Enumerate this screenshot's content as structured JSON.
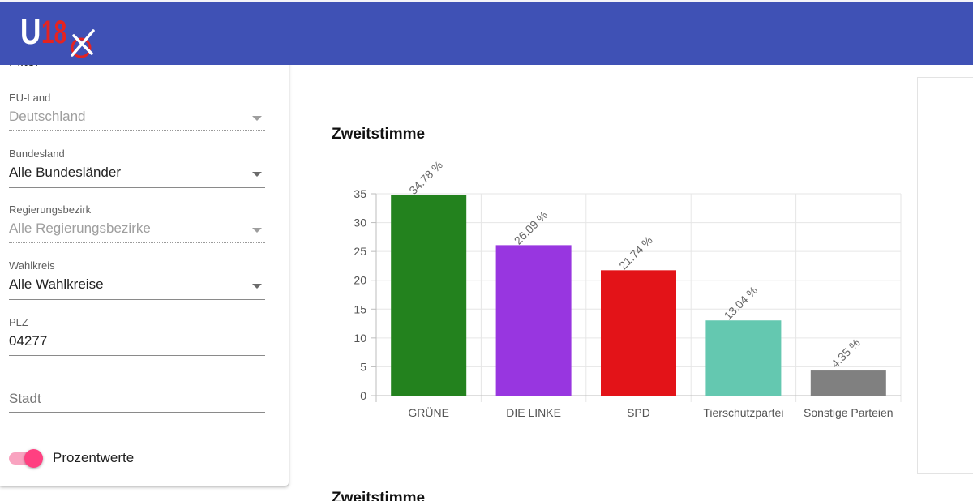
{
  "header": {
    "logo_u": "U",
    "logo_18": "18"
  },
  "filter": {
    "title": "Filter",
    "fields": {
      "eu_land": {
        "label": "EU-Land",
        "value": "Deutschland"
      },
      "bundesland": {
        "label": "Bundesland",
        "value": "Alle Bundesländer"
      },
      "regierungsbezirk": {
        "label": "Regierungsbezirk",
        "value": "Alle Regierungsbezirke"
      },
      "wahlkreis": {
        "label": "Wahlkreis",
        "value": "Alle Wahlkreise"
      },
      "plz": {
        "label": "PLZ",
        "value": "04277"
      },
      "stadt": {
        "placeholder": "Stadt",
        "value": ""
      }
    },
    "toggle": {
      "label": "Prozentwerte",
      "on": true
    }
  },
  "colors": {
    "brand_bar": "#3f51b5",
    "toggle_accent": "#ff4081"
  },
  "chart_title": "Zweitstimme",
  "chart_title_2": "Zweitstimme",
  "chart_data": {
    "type": "bar",
    "title": "Zweitstimme",
    "categories": [
      "GRÜNE",
      "DIE LINKE",
      "SPD",
      "Tierschutzpartei",
      "Sonstige Parteien"
    ],
    "values": [
      34.78,
      26.09,
      21.74,
      13.04,
      4.35
    ],
    "data_labels": [
      "34.78 %",
      "26.09 %",
      "21.74 %",
      "13.04 %",
      "4.35 %"
    ],
    "colors": [
      "#23821e",
      "#9836e0",
      "#e31318",
      "#64c8b0",
      "#808080"
    ],
    "ylim": [
      0,
      35
    ],
    "yticks": [
      0,
      5,
      10,
      15,
      20,
      25,
      30,
      35
    ],
    "grid": true,
    "xlabel": "",
    "ylabel": ""
  }
}
